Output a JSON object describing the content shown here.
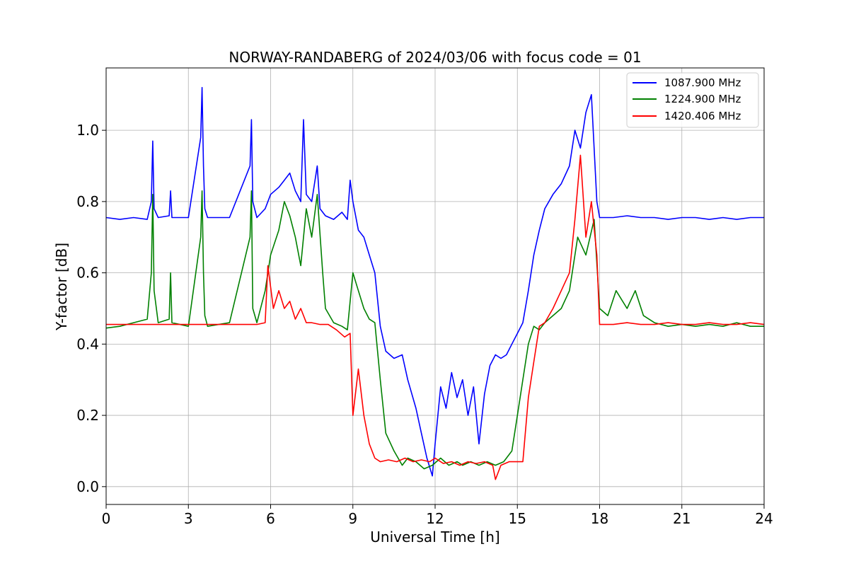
{
  "chart_data": {
    "type": "line",
    "title": "NORWAY-RANDABERG of 2024/03/06 with focus code = 01",
    "xlabel": "Universal Time [h]",
    "ylabel": "Y-factor [dB]",
    "xlim": [
      0,
      24
    ],
    "ylim": [
      -0.05,
      1.175
    ],
    "x_ticks": [
      0,
      3,
      6,
      9,
      12,
      15,
      18,
      21,
      24
    ],
    "x_tick_labels": [
      "0",
      "3",
      "6",
      "9",
      "12",
      "15",
      "18",
      "21",
      "24"
    ],
    "y_ticks": [
      0.0,
      0.2,
      0.4,
      0.6,
      0.8,
      1.0
    ],
    "y_tick_labels": [
      "0.0",
      "0.2",
      "0.4",
      "0.6",
      "0.8",
      "1.0"
    ],
    "grid": true,
    "legend_position": "top-right",
    "series": [
      {
        "name": "1087.900 MHz",
        "color": "#0000ff",
        "x": [
          0,
          0.5,
          1.0,
          1.5,
          1.65,
          1.7,
          1.75,
          1.9,
          2.3,
          2.35,
          2.4,
          3.0,
          3.45,
          3.5,
          3.55,
          3.6,
          3.7,
          4.5,
          5.25,
          5.3,
          5.35,
          5.5,
          5.8,
          6.0,
          6.3,
          6.5,
          6.7,
          6.9,
          7.1,
          7.2,
          7.3,
          7.5,
          7.7,
          7.8,
          8.0,
          8.3,
          8.6,
          8.8,
          8.9,
          9.0,
          9.2,
          9.4,
          9.6,
          9.8,
          10.0,
          10.2,
          10.5,
          10.8,
          11.0,
          11.3,
          11.5,
          11.7,
          11.9,
          12.0,
          12.2,
          12.4,
          12.6,
          12.8,
          13.0,
          13.2,
          13.4,
          13.6,
          13.8,
          14.0,
          14.2,
          14.4,
          14.6,
          14.8,
          15.0,
          15.2,
          15.4,
          15.6,
          15.8,
          16.0,
          16.3,
          16.6,
          16.9,
          17.1,
          17.3,
          17.5,
          17.7,
          17.9,
          18.0,
          18.5,
          19.0,
          19.5,
          20.0,
          20.5,
          21.0,
          21.5,
          22.0,
          22.5,
          23.0,
          23.5,
          24.0
        ],
        "y": [
          0.755,
          0.75,
          0.755,
          0.75,
          0.8,
          0.97,
          0.78,
          0.755,
          0.76,
          0.83,
          0.755,
          0.755,
          0.98,
          1.12,
          0.9,
          0.78,
          0.755,
          0.755,
          0.9,
          1.03,
          0.8,
          0.755,
          0.78,
          0.82,
          0.84,
          0.86,
          0.88,
          0.83,
          0.8,
          1.03,
          0.82,
          0.8,
          0.9,
          0.78,
          0.76,
          0.75,
          0.77,
          0.75,
          0.86,
          0.8,
          0.72,
          0.7,
          0.65,
          0.6,
          0.45,
          0.38,
          0.36,
          0.37,
          0.3,
          0.22,
          0.15,
          0.08,
          0.03,
          0.12,
          0.28,
          0.22,
          0.32,
          0.25,
          0.3,
          0.2,
          0.28,
          0.12,
          0.26,
          0.34,
          0.37,
          0.36,
          0.37,
          0.4,
          0.43,
          0.46,
          0.55,
          0.65,
          0.72,
          0.78,
          0.82,
          0.85,
          0.9,
          1.0,
          0.95,
          1.05,
          1.1,
          0.8,
          0.755,
          0.755,
          0.76,
          0.755,
          0.755,
          0.75,
          0.755,
          0.755,
          0.75,
          0.755,
          0.75,
          0.755,
          0.755
        ]
      },
      {
        "name": "1224.900 MHz",
        "color": "#008000",
        "x": [
          0,
          0.5,
          1.0,
          1.5,
          1.65,
          1.7,
          1.75,
          1.9,
          2.3,
          2.35,
          2.4,
          3.0,
          3.45,
          3.5,
          3.55,
          3.6,
          3.7,
          4.5,
          5.25,
          5.3,
          5.35,
          5.5,
          5.8,
          6.0,
          6.3,
          6.5,
          6.7,
          6.9,
          7.1,
          7.3,
          7.5,
          7.7,
          7.9,
          8.0,
          8.3,
          8.6,
          8.8,
          9.0,
          9.2,
          9.4,
          9.6,
          9.8,
          10.0,
          10.2,
          10.5,
          10.8,
          11.0,
          11.3,
          11.6,
          11.9,
          12.2,
          12.5,
          12.8,
          13.0,
          13.3,
          13.6,
          13.9,
          14.2,
          14.5,
          14.8,
          15.0,
          15.2,
          15.4,
          15.6,
          15.8,
          16.0,
          16.3,
          16.6,
          16.9,
          17.2,
          17.5,
          17.8,
          18.0,
          18.3,
          18.6,
          19.0,
          19.3,
          19.6,
          20.0,
          20.5,
          21.0,
          21.5,
          22.0,
          22.5,
          23.0,
          23.5,
          24.0
        ],
        "y": [
          0.445,
          0.45,
          0.46,
          0.47,
          0.6,
          0.82,
          0.55,
          0.46,
          0.47,
          0.6,
          0.46,
          0.45,
          0.7,
          0.83,
          0.6,
          0.48,
          0.45,
          0.46,
          0.7,
          0.83,
          0.5,
          0.46,
          0.55,
          0.65,
          0.72,
          0.8,
          0.76,
          0.7,
          0.62,
          0.78,
          0.7,
          0.82,
          0.6,
          0.5,
          0.46,
          0.45,
          0.44,
          0.6,
          0.55,
          0.5,
          0.47,
          0.46,
          0.3,
          0.15,
          0.1,
          0.06,
          0.08,
          0.07,
          0.05,
          0.06,
          0.08,
          0.06,
          0.07,
          0.06,
          0.07,
          0.06,
          0.07,
          0.06,
          0.07,
          0.1,
          0.2,
          0.3,
          0.4,
          0.45,
          0.44,
          0.46,
          0.48,
          0.5,
          0.55,
          0.7,
          0.65,
          0.75,
          0.5,
          0.48,
          0.55,
          0.5,
          0.55,
          0.48,
          0.46,
          0.45,
          0.455,
          0.45,
          0.455,
          0.45,
          0.46,
          0.45,
          0.45
        ]
      },
      {
        "name": "1420.406 MHz",
        "color": "#ff0000",
        "x": [
          0,
          0.5,
          1.0,
          1.5,
          2.0,
          2.5,
          3.0,
          3.5,
          4.0,
          4.5,
          5.0,
          5.5,
          5.8,
          5.9,
          6.1,
          6.3,
          6.5,
          6.7,
          6.9,
          7.1,
          7.3,
          7.5,
          7.8,
          8.1,
          8.4,
          8.7,
          8.9,
          9.0,
          9.2,
          9.4,
          9.6,
          9.8,
          10.0,
          10.3,
          10.6,
          10.9,
          11.2,
          11.5,
          11.8,
          12.0,
          12.3,
          12.6,
          12.9,
          13.2,
          13.5,
          13.8,
          14.1,
          14.2,
          14.4,
          14.7,
          15.0,
          15.2,
          15.4,
          15.6,
          15.8,
          16.0,
          16.3,
          16.6,
          16.9,
          17.1,
          17.3,
          17.5,
          17.7,
          17.9,
          18.0,
          18.5,
          19.0,
          19.5,
          20.0,
          20.5,
          21.0,
          21.5,
          22.0,
          22.5,
          23.0,
          23.5,
          24.0
        ],
        "y": [
          0.455,
          0.455,
          0.455,
          0.455,
          0.455,
          0.455,
          0.455,
          0.455,
          0.455,
          0.455,
          0.455,
          0.455,
          0.46,
          0.62,
          0.5,
          0.55,
          0.5,
          0.52,
          0.47,
          0.5,
          0.46,
          0.46,
          0.455,
          0.455,
          0.44,
          0.42,
          0.43,
          0.2,
          0.33,
          0.2,
          0.12,
          0.08,
          0.07,
          0.075,
          0.07,
          0.08,
          0.07,
          0.075,
          0.07,
          0.08,
          0.065,
          0.07,
          0.06,
          0.07,
          0.065,
          0.07,
          0.06,
          0.02,
          0.06,
          0.07,
          0.07,
          0.07,
          0.25,
          0.35,
          0.45,
          0.46,
          0.5,
          0.55,
          0.6,
          0.75,
          0.93,
          0.7,
          0.8,
          0.65,
          0.455,
          0.455,
          0.46,
          0.455,
          0.455,
          0.46,
          0.455,
          0.455,
          0.46,
          0.455,
          0.455,
          0.46,
          0.455
        ]
      }
    ]
  }
}
